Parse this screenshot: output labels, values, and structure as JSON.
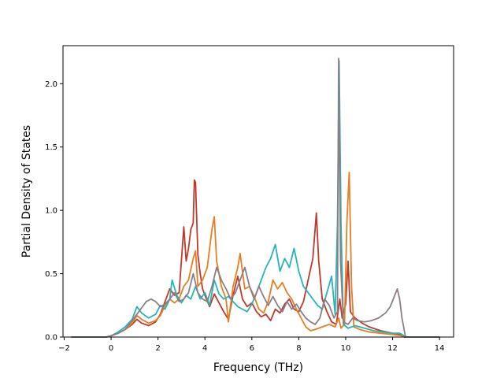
{
  "chart_data": {
    "type": "line",
    "xlabel": "Frequency (THz)",
    "ylabel": "Partial Density of States",
    "xlim": [
      -2.05,
      14.6
    ],
    "ylim": [
      0,
      2.3
    ],
    "x_ticks": [
      -2,
      0,
      2,
      4,
      6,
      8,
      10,
      12,
      14
    ],
    "y_ticks": [
      0.0,
      0.5,
      1.0,
      1.5,
      2.0
    ],
    "x_tick_labels": [
      "−2",
      "0",
      "2",
      "4",
      "6",
      "8",
      "10",
      "12",
      "14"
    ],
    "y_tick_labels": [
      "0.0",
      "0.5",
      "1.0",
      "1.5",
      "2.0"
    ],
    "grid": false,
    "legend": "none",
    "series": [
      {
        "color": "#c0392b",
        "points": [
          [
            -1.7,
            0
          ],
          [
            -0.2,
            0
          ],
          [
            0.0,
            0.01
          ],
          [
            0.3,
            0.03
          ],
          [
            0.6,
            0.06
          ],
          [
            0.9,
            0.1
          ],
          [
            1.1,
            0.14
          ],
          [
            1.3,
            0.11
          ],
          [
            1.6,
            0.09
          ],
          [
            1.9,
            0.12
          ],
          [
            2.1,
            0.18
          ],
          [
            2.3,
            0.28
          ],
          [
            2.5,
            0.38
          ],
          [
            2.7,
            0.33
          ],
          [
            2.9,
            0.35
          ],
          [
            3.1,
            0.87
          ],
          [
            3.2,
            0.6
          ],
          [
            3.3,
            0.7
          ],
          [
            3.4,
            0.85
          ],
          [
            3.5,
            0.9
          ],
          [
            3.55,
            1.24
          ],
          [
            3.6,
            1.22
          ],
          [
            3.7,
            0.65
          ],
          [
            3.8,
            0.5
          ],
          [
            3.9,
            0.38
          ],
          [
            4.0,
            0.33
          ],
          [
            4.2,
            0.24
          ],
          [
            4.4,
            0.34
          ],
          [
            4.6,
            0.27
          ],
          [
            4.8,
            0.2
          ],
          [
            5.0,
            0.14
          ],
          [
            5.2,
            0.33
          ],
          [
            5.4,
            0.48
          ],
          [
            5.6,
            0.3
          ],
          [
            5.8,
            0.24
          ],
          [
            6.0,
            0.27
          ],
          [
            6.2,
            0.2
          ],
          [
            6.4,
            0.16
          ],
          [
            6.6,
            0.18
          ],
          [
            6.8,
            0.13
          ],
          [
            7.0,
            0.22
          ],
          [
            7.2,
            0.19
          ],
          [
            7.4,
            0.26
          ],
          [
            7.6,
            0.3
          ],
          [
            7.8,
            0.22
          ],
          [
            8.0,
            0.2
          ],
          [
            8.2,
            0.28
          ],
          [
            8.4,
            0.45
          ],
          [
            8.6,
            0.62
          ],
          [
            8.75,
            0.98
          ],
          [
            8.85,
            0.6
          ],
          [
            9.0,
            0.3
          ],
          [
            9.2,
            0.2
          ],
          [
            9.4,
            0.12
          ],
          [
            9.6,
            0.1
          ],
          [
            9.75,
            0.3
          ],
          [
            9.85,
            0.15
          ],
          [
            10.0,
            0.26
          ],
          [
            10.1,
            0.6
          ],
          [
            10.2,
            0.2
          ],
          [
            10.4,
            0.15
          ],
          [
            10.7,
            0.11
          ],
          [
            11.0,
            0.08
          ],
          [
            11.5,
            0.05
          ],
          [
            12.0,
            0.03
          ],
          [
            12.3,
            0.02
          ],
          [
            12.5,
            0
          ],
          [
            14.0,
            0
          ]
        ]
      },
      {
        "color": "#e67e22",
        "points": [
          [
            -1.7,
            0
          ],
          [
            -0.2,
            0
          ],
          [
            0.0,
            0.01
          ],
          [
            0.3,
            0.03
          ],
          [
            0.6,
            0.06
          ],
          [
            0.9,
            0.11
          ],
          [
            1.1,
            0.17
          ],
          [
            1.3,
            0.14
          ],
          [
            1.6,
            0.11
          ],
          [
            1.9,
            0.13
          ],
          [
            2.1,
            0.17
          ],
          [
            2.3,
            0.25
          ],
          [
            2.5,
            0.3
          ],
          [
            2.7,
            0.27
          ],
          [
            2.9,
            0.3
          ],
          [
            3.1,
            0.4
          ],
          [
            3.3,
            0.45
          ],
          [
            3.5,
            0.62
          ],
          [
            3.6,
            0.68
          ],
          [
            3.7,
            0.4
          ],
          [
            3.9,
            0.45
          ],
          [
            4.1,
            0.55
          ],
          [
            4.3,
            0.85
          ],
          [
            4.4,
            0.95
          ],
          [
            4.5,
            0.6
          ],
          [
            4.7,
            0.4
          ],
          [
            4.9,
            0.3
          ],
          [
            5.0,
            0.12
          ],
          [
            5.2,
            0.4
          ],
          [
            5.4,
            0.55
          ],
          [
            5.5,
            0.66
          ],
          [
            5.7,
            0.38
          ],
          [
            5.9,
            0.4
          ],
          [
            6.1,
            0.32
          ],
          [
            6.3,
            0.22
          ],
          [
            6.5,
            0.19
          ],
          [
            6.7,
            0.28
          ],
          [
            6.9,
            0.45
          ],
          [
            7.1,
            0.38
          ],
          [
            7.3,
            0.43
          ],
          [
            7.5,
            0.35
          ],
          [
            7.7,
            0.3
          ],
          [
            7.9,
            0.22
          ],
          [
            8.1,
            0.15
          ],
          [
            8.3,
            0.08
          ],
          [
            8.5,
            0.05
          ],
          [
            8.7,
            0.06
          ],
          [
            9.0,
            0.08
          ],
          [
            9.3,
            0.1
          ],
          [
            9.55,
            0.08
          ],
          [
            9.7,
            0.15
          ],
          [
            9.8,
            0.07
          ],
          [
            9.95,
            0.1
          ],
          [
            10.05,
            0.9
          ],
          [
            10.15,
            1.3
          ],
          [
            10.25,
            0.4
          ],
          [
            10.35,
            0.08
          ],
          [
            10.6,
            0.06
          ],
          [
            11.0,
            0.04
          ],
          [
            11.5,
            0.03
          ],
          [
            12.0,
            0.02
          ],
          [
            12.4,
            0.01
          ],
          [
            12.6,
            0
          ],
          [
            14.0,
            0
          ]
        ]
      },
      {
        "color": "#27b3b8",
        "points": [
          [
            -1.7,
            0
          ],
          [
            -0.2,
            0
          ],
          [
            0.0,
            0.01
          ],
          [
            0.3,
            0.04
          ],
          [
            0.6,
            0.08
          ],
          [
            0.9,
            0.14
          ],
          [
            1.1,
            0.24
          ],
          [
            1.3,
            0.19
          ],
          [
            1.6,
            0.15
          ],
          [
            1.9,
            0.18
          ],
          [
            2.1,
            0.25
          ],
          [
            2.3,
            0.22
          ],
          [
            2.5,
            0.3
          ],
          [
            2.6,
            0.45
          ],
          [
            2.8,
            0.33
          ],
          [
            3.0,
            0.27
          ],
          [
            3.2,
            0.33
          ],
          [
            3.4,
            0.3
          ],
          [
            3.6,
            0.4
          ],
          [
            3.8,
            0.3
          ],
          [
            4.0,
            0.35
          ],
          [
            4.2,
            0.25
          ],
          [
            4.4,
            0.45
          ],
          [
            4.6,
            0.34
          ],
          [
            4.8,
            0.3
          ],
          [
            5.0,
            0.32
          ],
          [
            5.2,
            0.28
          ],
          [
            5.4,
            0.24
          ],
          [
            5.6,
            0.22
          ],
          [
            5.8,
            0.2
          ],
          [
            6.0,
            0.26
          ],
          [
            6.2,
            0.35
          ],
          [
            6.4,
            0.45
          ],
          [
            6.6,
            0.55
          ],
          [
            6.8,
            0.62
          ],
          [
            7.0,
            0.73
          ],
          [
            7.2,
            0.52
          ],
          [
            7.4,
            0.62
          ],
          [
            7.6,
            0.55
          ],
          [
            7.8,
            0.7
          ],
          [
            8.0,
            0.52
          ],
          [
            8.2,
            0.4
          ],
          [
            8.4,
            0.35
          ],
          [
            8.6,
            0.3
          ],
          [
            8.8,
            0.25
          ],
          [
            9.0,
            0.22
          ],
          [
            9.2,
            0.35
          ],
          [
            9.4,
            0.48
          ],
          [
            9.55,
            0.18
          ],
          [
            9.65,
            0.9
          ],
          [
            9.72,
            2.18
          ],
          [
            9.8,
            0.9
          ],
          [
            9.9,
            0.1
          ],
          [
            10.1,
            0.07
          ],
          [
            10.4,
            0.09
          ],
          [
            10.8,
            0.07
          ],
          [
            11.2,
            0.05
          ],
          [
            11.6,
            0.04
          ],
          [
            12.0,
            0.03
          ],
          [
            12.3,
            0.03
          ],
          [
            12.5,
            0.01
          ],
          [
            12.6,
            0
          ],
          [
            14.0,
            0
          ]
        ]
      },
      {
        "color": "#8c7f84",
        "points": [
          [
            -1.7,
            0
          ],
          [
            -0.2,
            0
          ],
          [
            0.0,
            0.01
          ],
          [
            0.3,
            0.03
          ],
          [
            0.6,
            0.06
          ],
          [
            0.9,
            0.13
          ],
          [
            1.1,
            0.18
          ],
          [
            1.3,
            0.23
          ],
          [
            1.5,
            0.28
          ],
          [
            1.7,
            0.3
          ],
          [
            1.9,
            0.28
          ],
          [
            2.1,
            0.24
          ],
          [
            2.3,
            0.26
          ],
          [
            2.5,
            0.3
          ],
          [
            2.7,
            0.35
          ],
          [
            2.9,
            0.28
          ],
          [
            3.1,
            0.3
          ],
          [
            3.3,
            0.35
          ],
          [
            3.5,
            0.5
          ],
          [
            3.7,
            0.35
          ],
          [
            3.9,
            0.3
          ],
          [
            4.1,
            0.28
          ],
          [
            4.3,
            0.4
          ],
          [
            4.5,
            0.55
          ],
          [
            4.7,
            0.45
          ],
          [
            4.9,
            0.38
          ],
          [
            5.1,
            0.3
          ],
          [
            5.3,
            0.35
          ],
          [
            5.5,
            0.45
          ],
          [
            5.7,
            0.55
          ],
          [
            5.9,
            0.4
          ],
          [
            6.1,
            0.3
          ],
          [
            6.3,
            0.4
          ],
          [
            6.5,
            0.32
          ],
          [
            6.7,
            0.25
          ],
          [
            6.9,
            0.32
          ],
          [
            7.1,
            0.25
          ],
          [
            7.3,
            0.2
          ],
          [
            7.5,
            0.28
          ],
          [
            7.7,
            0.22
          ],
          [
            7.9,
            0.26
          ],
          [
            8.1,
            0.2
          ],
          [
            8.3,
            0.15
          ],
          [
            8.5,
            0.12
          ],
          [
            8.7,
            0.1
          ],
          [
            8.9,
            0.15
          ],
          [
            9.1,
            0.3
          ],
          [
            9.3,
            0.25
          ],
          [
            9.5,
            0.15
          ],
          [
            9.65,
            0.2
          ],
          [
            9.7,
            2.2
          ],
          [
            9.78,
            0.6
          ],
          [
            9.9,
            0.12
          ],
          [
            10.1,
            0.1
          ],
          [
            10.3,
            0.15
          ],
          [
            10.5,
            0.13
          ],
          [
            10.8,
            0.12
          ],
          [
            11.1,
            0.13
          ],
          [
            11.4,
            0.15
          ],
          [
            11.7,
            0.19
          ],
          [
            11.9,
            0.24
          ],
          [
            12.05,
            0.31
          ],
          [
            12.2,
            0.38
          ],
          [
            12.3,
            0.3
          ],
          [
            12.4,
            0.15
          ],
          [
            12.55,
            0
          ],
          [
            14.0,
            0
          ]
        ]
      }
    ]
  }
}
